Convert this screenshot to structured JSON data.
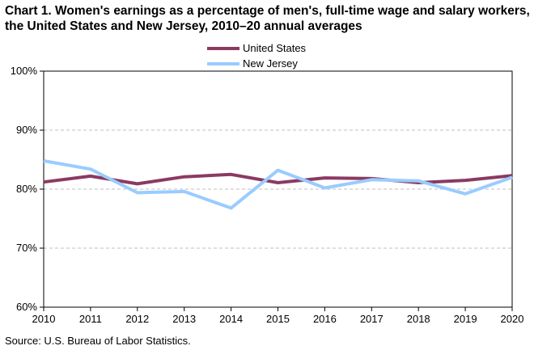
{
  "title": "Chart 1. Women's earnings as a percentage of men's, full-time wage and salary workers, the United States and New Jersey, 2010–20 annual averages",
  "source": "Source:  U.S. Bureau of Labor Statistics.",
  "chart_data": {
    "type": "line",
    "title": "Chart 1. Women's earnings as a percentage of men's, full-time wage and salary workers, the United States and New Jersey, 2010–20 annual averages",
    "xlabel": "",
    "ylabel": "",
    "x": [
      "2010",
      "2011",
      "2012",
      "2013",
      "2014",
      "2015",
      "2016",
      "2017",
      "2018",
      "2019",
      "2020"
    ],
    "ylim": [
      60,
      100
    ],
    "yticks": [
      60,
      70,
      80,
      90,
      100
    ],
    "ytick_labels": [
      "60%",
      "70%",
      "80%",
      "90%",
      "100%"
    ],
    "grid": "horizontal dashed",
    "legend_position": "top",
    "series": [
      {
        "name": "United States",
        "color": "#8B3A62",
        "values": [
          81.2,
          82.2,
          80.9,
          82.1,
          82.5,
          81.1,
          81.9,
          81.8,
          81.1,
          81.5,
          82.3
        ]
      },
      {
        "name": "New Jersey",
        "color": "#99CCFF",
        "values": [
          84.8,
          83.4,
          79.4,
          79.6,
          76.8,
          83.2,
          80.2,
          81.6,
          81.4,
          79.2,
          82.0
        ]
      }
    ]
  }
}
